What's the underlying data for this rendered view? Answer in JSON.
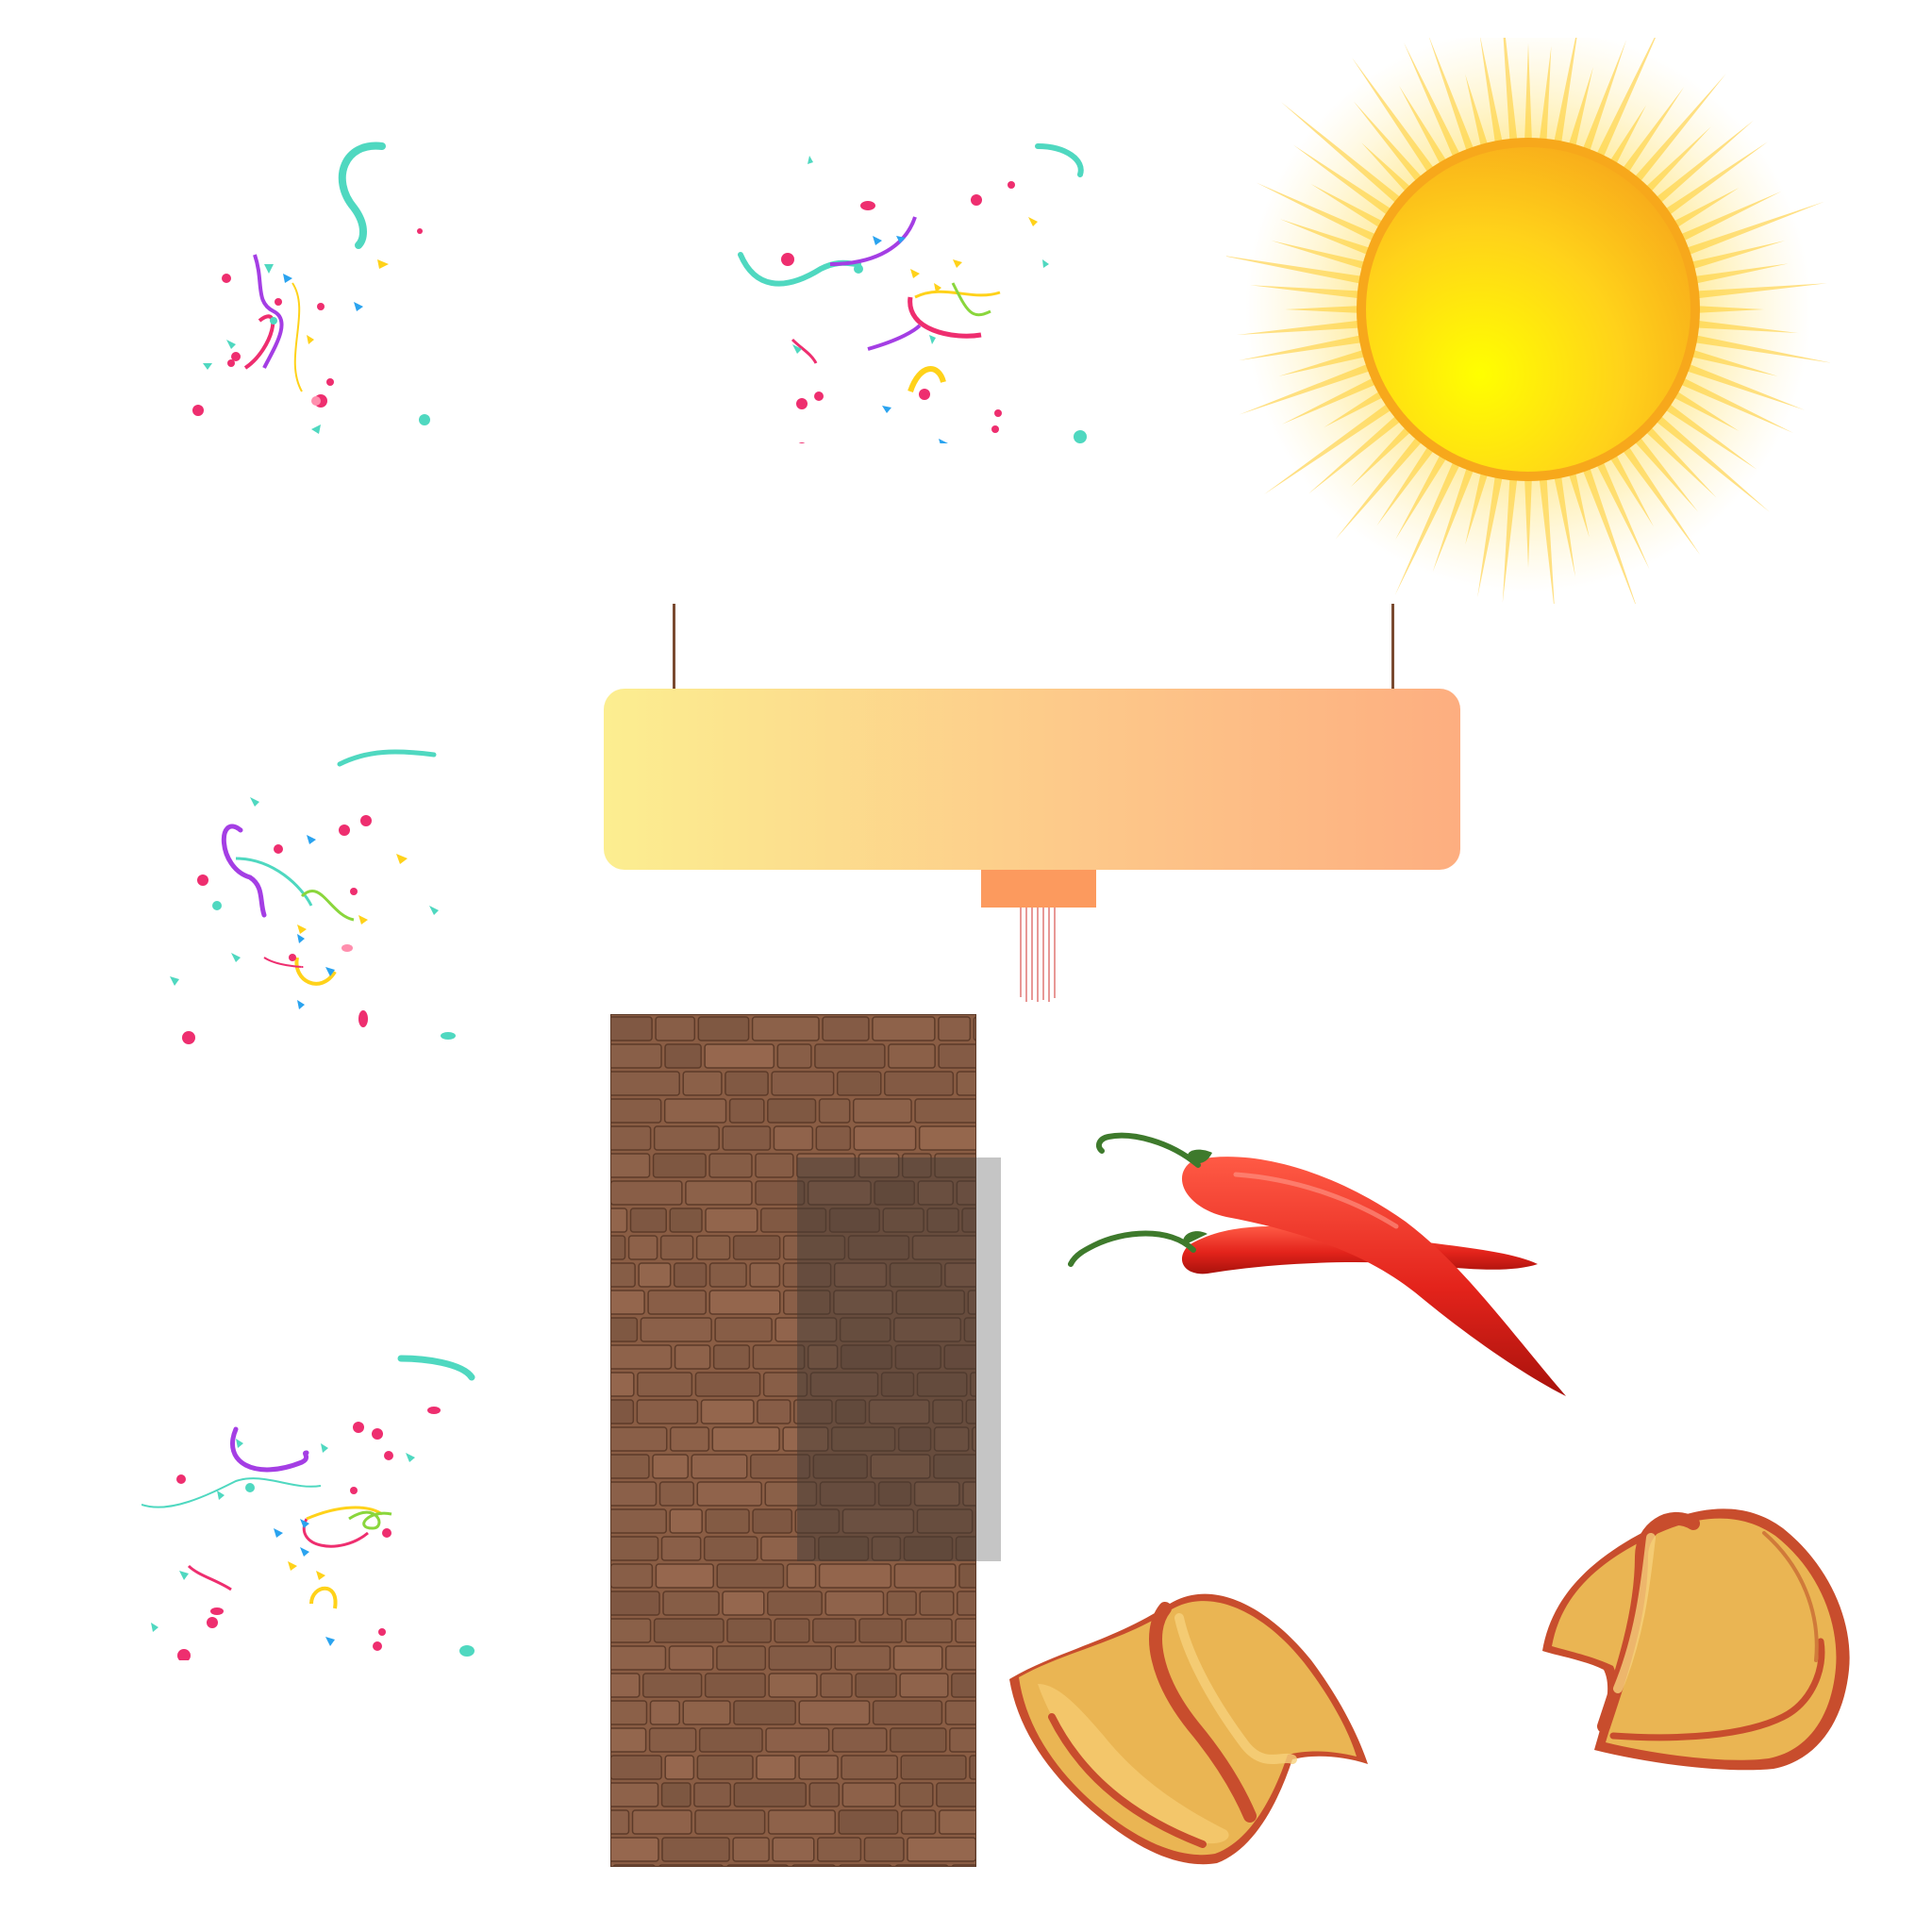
{
  "scene": {
    "sprites": [
      {
        "name": "confetti-burst",
        "icon": "confetti-icon"
      },
      {
        "name": "confetti-burst",
        "icon": "confetti-icon"
      },
      {
        "name": "confetti-burst",
        "icon": "confetti-icon"
      },
      {
        "name": "confetti-burst",
        "icon": "confetti-icon"
      },
      {
        "name": "sun",
        "icon": "sun-icon"
      },
      {
        "name": "hanging-sign",
        "icon": "sign-icon"
      },
      {
        "name": "stone-wall",
        "icon": "stone-wall-icon"
      },
      {
        "name": "chili-peppers",
        "icon": "chili-icon"
      },
      {
        "name": "fortune-cookie",
        "icon": "fortune-cookie-icon"
      },
      {
        "name": "fortune-cookie",
        "icon": "fortune-cookie-icon"
      }
    ],
    "sign": {
      "text": ""
    },
    "colors": {
      "background": "#ffffff",
      "sun_core": "#ffd21a",
      "sun_rim": "#f7a81b",
      "sign_gradient_start": "#fcee90",
      "sign_gradient_end": "#fdae80",
      "sign_tab": "#fc9a5e",
      "wall_stone": "#8a5d44",
      "chili_red": "#e3231b",
      "chili_stem": "#3e7a2c",
      "cookie_body": "#eab553",
      "cookie_edge": "#c84d2d",
      "confetti": [
        "#4fd8c0",
        "#ee2e6f",
        "#a43ee4",
        "#ffd21a",
        "#2aa3ef",
        "#8ad63c"
      ]
    }
  }
}
